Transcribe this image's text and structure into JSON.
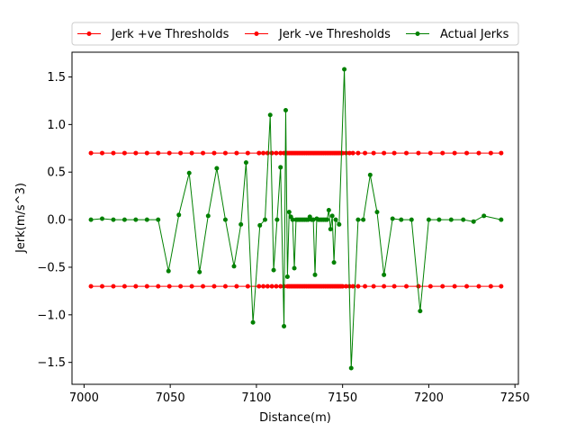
{
  "chart_data": {
    "type": "line",
    "title": "",
    "xlabel": "Distance(m)",
    "ylabel": "Jerk(m/s^3)",
    "xlim": [
      6993,
      7252
    ],
    "ylim": [
      -1.73,
      1.76
    ],
    "xticks": [
      7000,
      7050,
      7100,
      7150,
      7200,
      7250
    ],
    "yticks": [
      -1.5,
      -1.0,
      -0.5,
      0.0,
      0.5,
      1.0,
      1.5
    ],
    "xtick_labels": [
      "7000",
      "7050",
      "7100",
      "7150",
      "7200",
      "7250"
    ],
    "ytick_labels": [
      "−1.5",
      "−1.0",
      "−0.5",
      "0.0",
      "0.5",
      "1.0",
      "1.5"
    ],
    "grid": false,
    "legend_position": "top-center",
    "series": [
      {
        "name": "Jerk +ve Thresholds",
        "color": "#ff0000",
        "marker": "circle",
        "x": [
          7004,
          7010.5,
          7017,
          7023.5,
          7030,
          7036.5,
          7043,
          7049.5,
          7056,
          7062.5,
          7069,
          7075.5,
          7082,
          7088.5,
          7095,
          7101.5,
          7104,
          7106.5,
          7109,
          7111.5,
          7114,
          7116,
          7118,
          7119,
          7120,
          7121,
          7122,
          7123,
          7124,
          7125,
          7126,
          7127,
          7128,
          7129,
          7130,
          7131,
          7132,
          7133,
          7134,
          7135,
          7136,
          7137,
          7138,
          7139,
          7140,
          7141,
          7142,
          7143,
          7144,
          7145,
          7146,
          7147,
          7148,
          7149,
          7150,
          7152,
          7154,
          7156,
          7159,
          7163,
          7168,
          7174,
          7180,
          7187,
          7194,
          7201,
          7208,
          7215,
          7222,
          7229,
          7236,
          7242
        ],
        "y": [
          0.7,
          0.7,
          0.7,
          0.7,
          0.7,
          0.7,
          0.7,
          0.7,
          0.7,
          0.7,
          0.7,
          0.7,
          0.7,
          0.7,
          0.7,
          0.7,
          0.7,
          0.7,
          0.7,
          0.7,
          0.7,
          0.7,
          0.7,
          0.7,
          0.7,
          0.7,
          0.7,
          0.7,
          0.7,
          0.7,
          0.7,
          0.7,
          0.7,
          0.7,
          0.7,
          0.7,
          0.7,
          0.7,
          0.7,
          0.7,
          0.7,
          0.7,
          0.7,
          0.7,
          0.7,
          0.7,
          0.7,
          0.7,
          0.7,
          0.7,
          0.7,
          0.7,
          0.7,
          0.7,
          0.7,
          0.7,
          0.7,
          0.7,
          0.7,
          0.7,
          0.7,
          0.7,
          0.7,
          0.7,
          0.7,
          0.7,
          0.7,
          0.7,
          0.7,
          0.7,
          0.7,
          0.7
        ]
      },
      {
        "name": "Jerk -ve Thresholds",
        "color": "#ff0000",
        "marker": "circle",
        "x": [
          7004,
          7010.5,
          7017,
          7023.5,
          7030,
          7036.5,
          7043,
          7049.5,
          7056,
          7062.5,
          7069,
          7075.5,
          7082,
          7088.5,
          7095,
          7101.5,
          7104,
          7106.5,
          7109,
          7111.5,
          7114,
          7116,
          7118,
          7119,
          7120,
          7121,
          7122,
          7123,
          7124,
          7125,
          7126,
          7127,
          7128,
          7129,
          7130,
          7131,
          7132,
          7133,
          7134,
          7135,
          7136,
          7137,
          7138,
          7139,
          7140,
          7141,
          7142,
          7143,
          7144,
          7145,
          7146,
          7147,
          7148,
          7149,
          7150,
          7152,
          7154,
          7156,
          7159,
          7163,
          7168,
          7174,
          7180,
          7187,
          7194,
          7201,
          7208,
          7215,
          7222,
          7229,
          7236,
          7242
        ],
        "y": [
          -0.7,
          -0.7,
          -0.7,
          -0.7,
          -0.7,
          -0.7,
          -0.7,
          -0.7,
          -0.7,
          -0.7,
          -0.7,
          -0.7,
          -0.7,
          -0.7,
          -0.7,
          -0.7,
          -0.7,
          -0.7,
          -0.7,
          -0.7,
          -0.7,
          -0.7,
          -0.7,
          -0.7,
          -0.7,
          -0.7,
          -0.7,
          -0.7,
          -0.7,
          -0.7,
          -0.7,
          -0.7,
          -0.7,
          -0.7,
          -0.7,
          -0.7,
          -0.7,
          -0.7,
          -0.7,
          -0.7,
          -0.7,
          -0.7,
          -0.7,
          -0.7,
          -0.7,
          -0.7,
          -0.7,
          -0.7,
          -0.7,
          -0.7,
          -0.7,
          -0.7,
          -0.7,
          -0.7,
          -0.7,
          -0.7,
          -0.7,
          -0.7,
          -0.7,
          -0.7,
          -0.7,
          -0.7,
          -0.7,
          -0.7,
          -0.7,
          -0.7,
          -0.7,
          -0.7,
          -0.7,
          -0.7,
          -0.7,
          -0.7
        ]
      },
      {
        "name": "Actual Jerks",
        "color": "#008000",
        "marker": "circle",
        "x": [
          7004,
          7010.5,
          7017,
          7023.5,
          7030,
          7036.5,
          7043,
          7049,
          7055,
          7061,
          7067,
          7072,
          7077,
          7082,
          7087,
          7091,
          7094,
          7098,
          7102,
          7105,
          7108,
          7110,
          7112,
          7114,
          7116,
          7117,
          7118,
          7119,
          7120,
          7121,
          7122,
          7123,
          7124,
          7125,
          7126,
          7127,
          7128,
          7129,
          7130,
          7131,
          7132,
          7133,
          7134,
          7135,
          7136,
          7137,
          7138,
          7139,
          7140,
          7141,
          7142,
          7143,
          7144,
          7145,
          7146,
          7148,
          7151,
          7155,
          7159,
          7162,
          7166,
          7170,
          7174,
          7179,
          7184,
          7190,
          7195,
          7200,
          7206,
          7213,
          7220,
          7226,
          7232,
          7242
        ],
        "y": [
          0.0,
          0.01,
          0.0,
          0.0,
          0.0,
          0.0,
          0.0,
          -0.54,
          0.05,
          0.49,
          -0.55,
          0.04,
          0.54,
          0.0,
          -0.49,
          -0.05,
          0.6,
          -1.08,
          -0.06,
          0.0,
          1.1,
          -0.53,
          0.0,
          0.55,
          -1.12,
          1.15,
          -0.6,
          0.08,
          0.03,
          0.0,
          -0.51,
          0.0,
          0.0,
          0.0,
          0.0,
          0.0,
          0.0,
          0.0,
          0.0,
          0.03,
          0.0,
          0.0,
          -0.58,
          0.01,
          0.0,
          0.0,
          0.0,
          0.0,
          0.0,
          0.0,
          0.1,
          -0.1,
          0.04,
          -0.45,
          0.0,
          -0.05,
          1.58,
          -1.56,
          0.0,
          0.0,
          0.47,
          0.08,
          -0.58,
          0.01,
          0.0,
          0.0,
          -0.96,
          0.0,
          0.0,
          0.0,
          0.0,
          -0.02,
          0.04,
          0.0
        ]
      }
    ]
  }
}
